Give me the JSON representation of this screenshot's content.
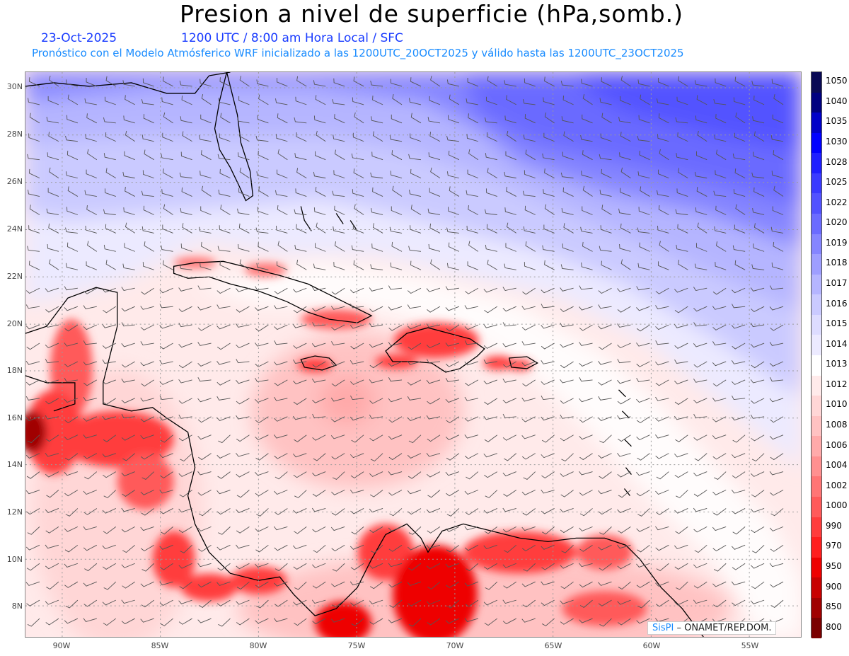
{
  "header": {
    "title": "Presion a nivel de superficie (hPa,somb.)",
    "date": "23-Oct-2025",
    "time_info": "1200 UTC / 8:00 am Hora Local / SFC",
    "forecast_info": "Pronóstico con el Modelo Atmósferico WRF inicializado a las 1200UTC_20OCT2025 y válido hasta las  1200UTC_23OCT2025"
  },
  "map": {
    "lat_labels": [
      "30N",
      "28N",
      "26N",
      "24N",
      "22N",
      "20N",
      "18N",
      "16N",
      "14N",
      "12N",
      "10N",
      "8N"
    ],
    "lon_labels": [
      "90W",
      "85W",
      "80W",
      "75W",
      "70W",
      "65W",
      "60W",
      "55W"
    ]
  },
  "colorbar": {
    "levels": [
      "1050",
      "1040",
      "1035",
      "1030",
      "1028",
      "1025",
      "1022",
      "1020",
      "1019",
      "1018",
      "1017",
      "1016",
      "1015",
      "1014",
      "1013",
      "1012",
      "1010",
      "1008",
      "1006",
      "1004",
      "1002",
      "1000",
      "990",
      "970",
      "950",
      "900",
      "850",
      "800"
    ],
    "colors": [
      "#0a0a55",
      "#000080",
      "#0000c8",
      "#0000ff",
      "#1e1eff",
      "#3a3aff",
      "#5252ff",
      "#6b6bff",
      "#8585ff",
      "#9e9eff",
      "#b5b5ff",
      "#cacaff",
      "#dddcff",
      "#eceaff",
      "#ffffff",
      "#ffeaea",
      "#ffd6d6",
      "#ffc2c2",
      "#ffaaaa",
      "#ff9090",
      "#ff7575",
      "#ff5a5a",
      "#ff3c3c",
      "#ff1e1e",
      "#ee0000",
      "#c80000",
      "#a00000",
      "#7a0000"
    ]
  },
  "credit": {
    "brand": "SisPI",
    "text": "– ONAMET/REP.DOM."
  }
}
